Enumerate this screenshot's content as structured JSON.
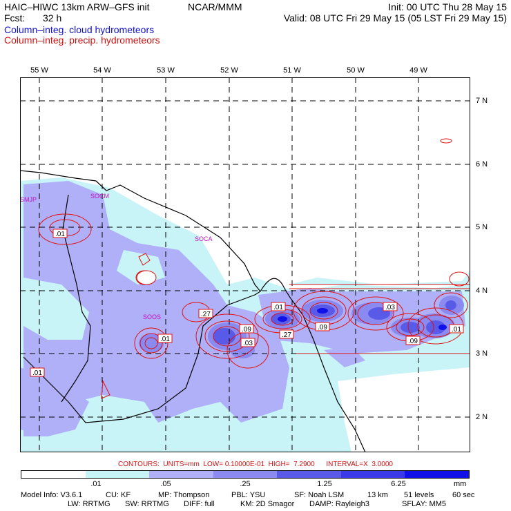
{
  "header": {
    "model_title": "HAIC–HIWC 13km ARW–GFS init",
    "org": "NCAR/MMM",
    "init": "Init: 00 UTC Thu 28 May 15",
    "fcst_label": "Fcst:",
    "fcst_value": "32 h",
    "valid": "Valid: 08 UTC Fri 29 May 15 (05 LST Fri 29 May 15)",
    "field_blue": "Column–integ. cloud hydrometeors",
    "field_red": "Column–integ. precip. hydrometeors"
  },
  "map": {
    "lon_labels": [
      "55 W",
      "54 W",
      "53 W",
      "52 W",
      "51 W",
      "50 W",
      "49 W"
    ],
    "lat_labels": [
      "7 N",
      "6 N",
      "5 N",
      "4 N",
      "3 N",
      "2 N"
    ],
    "stations": [
      "SMJP",
      "SOCM",
      "SOCA",
      "SOOS"
    ],
    "contour_labels": [
      ".01",
      ".27",
      ".09",
      ".03",
      ".01",
      ".27",
      ".09",
      ".03",
      ".09",
      ".01",
      ".01",
      ".01"
    ],
    "fill_colors": [
      "#ffffff",
      "#c8f4f8",
      "#b0b0f8",
      "#8a8af0",
      "#5a5ae8",
      "#3a3ae8",
      "#1010e8"
    ],
    "contour_color": "#e01010"
  },
  "contours_note": "CONTOURS:  UNITS=mm  LOW= 0.10000E-01  HIGH=  7.2900      INTERVAL=X  3.0000",
  "colorbar": {
    "ticks": [
      ".01",
      ".05",
      ".25",
      "1.25",
      "6.25"
    ],
    "unit": "mm",
    "colors": [
      "#ffffff",
      "#c8f4f8",
      "#b0b0f8",
      "#8a8af0",
      "#5a5ae8",
      "#3a3ae8",
      "#1010e8"
    ]
  },
  "model_info": {
    "line1": [
      "Model Info: V3.6.1",
      "CU: KF",
      "MP: Thompson",
      "PBL: YSU",
      "SF: Noah LSM",
      "13 km",
      "51 levels",
      "60 sec"
    ],
    "line2": [
      "LW: RRTMG",
      "SW: RRTMG",
      "DIFF: full",
      "KM: 2D Smagor",
      "DAMP: Rayleigh3",
      "SFLAY: MM5"
    ]
  }
}
